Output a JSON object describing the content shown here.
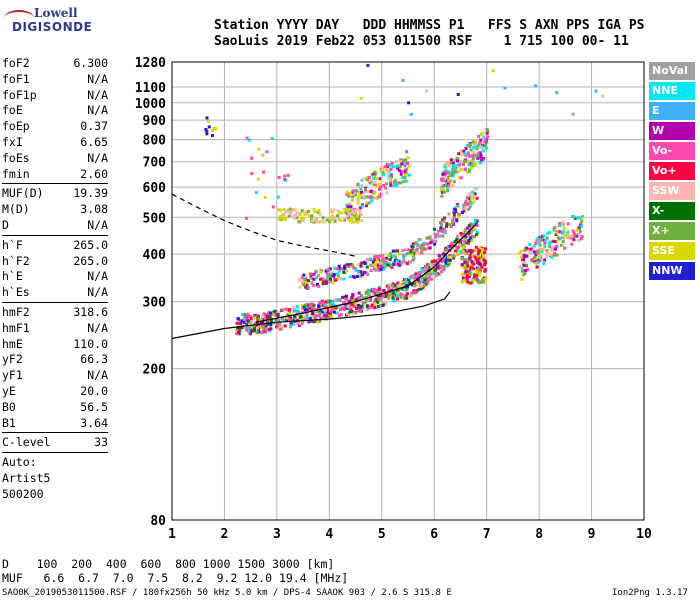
{
  "logo": {
    "line1": "Lowell",
    "line2": "DIGISONDE"
  },
  "header": {
    "line1": "Station YYYY DAY   DDD HHMMSS P1   FFS S AXN PPS IGA PS",
    "line2": "SaoLuis 2019 Feb22 053 011500 RSF    1 715 100 00- 11"
  },
  "params": {
    "group1": [
      {
        "name": "foF2",
        "value": "6.300"
      },
      {
        "name": "foF1",
        "value": "N/A"
      },
      {
        "name": "foF1p",
        "value": "N/A"
      },
      {
        "name": "foE",
        "value": "N/A"
      },
      {
        "name": "foEp",
        "value": "0.37"
      },
      {
        "name": "fxI",
        "value": "6.65"
      },
      {
        "name": "foEs",
        "value": "N/A"
      },
      {
        "name": "fmin",
        "value": "2.60"
      }
    ],
    "group2": [
      {
        "name": "MUF(D)",
        "value": "19.39"
      },
      {
        "name": "M(D)",
        "value": "3.08"
      },
      {
        "name": "D",
        "value": "N/A"
      }
    ],
    "group3": [
      {
        "name": "h`F",
        "value": "265.0"
      },
      {
        "name": "h`F2",
        "value": "265.0"
      },
      {
        "name": "h`E",
        "value": "N/A"
      },
      {
        "name": "h`Es",
        "value": "N/A"
      }
    ],
    "group4": [
      {
        "name": "hmF2",
        "value": "318.6"
      },
      {
        "name": "hmF1",
        "value": "N/A"
      },
      {
        "name": "hmE",
        "value": "110.0"
      },
      {
        "name": "yF2",
        "value": "66.3"
      },
      {
        "name": "yF1",
        "value": "N/A"
      },
      {
        "name": "yE",
        "value": "20.0"
      },
      {
        "name": "B0",
        "value": "56.5"
      },
      {
        "name": "B1",
        "value": "3.64"
      }
    ],
    "clevel": {
      "name": "C-level",
      "value": "33"
    },
    "auto": [
      "Auto:",
      "Artist5",
      "500200"
    ]
  },
  "legend": [
    {
      "label": "NoVal",
      "color": "#a0a0a0"
    },
    {
      "label": "NNE",
      "color": "#00e8f0"
    },
    {
      "label": "E",
      "color": "#40b0f8"
    },
    {
      "label": "W",
      "color": "#b000b0"
    },
    {
      "label": "Vo-",
      "color": "#ff48b0"
    },
    {
      "label": "Vo+",
      "color": "#ff0040"
    },
    {
      "label": "SSW",
      "color": "#ffb4b4"
    },
    {
      "label": "X-",
      "color": "#007000"
    },
    {
      "label": "X+",
      "color": "#70b040"
    },
    {
      "label": "SSE",
      "color": "#d8d800"
    },
    {
      "label": "NNW",
      "color": "#2020d0"
    }
  ],
  "bottom": {
    "d_line": "D    100  200  400  600  800 1000 1500 3000 [km]",
    "muf_line": "MUF   6.6  6.7  7.0  7.5  8.2  9.2 12.0 19.4 [MHz]",
    "footer": "SAO0K_2019053011500.RSF / 180fx256h 50 kHz 5.0 km / DPS-4 SAAOK 903 / 2.6 S 315.8 E",
    "version": "Ion2Png 1.3.17"
  },
  "chart_data": {
    "type": "scatter",
    "title": "",
    "xlabel": "",
    "ylabel": "",
    "x_ticks": [
      1,
      2,
      3,
      4,
      5,
      6,
      7,
      8,
      9,
      10
    ],
    "y_ticks": [
      80,
      200,
      300,
      400,
      500,
      600,
      700,
      800,
      900,
      1000,
      1100,
      1280
    ],
    "xlim": [
      1,
      10
    ],
    "y_scale": "log",
    "ylim": [
      80,
      1280
    ],
    "grid": true,
    "ordinary_trace": {
      "x": [
        2.6,
        3.5,
        4.5,
        5.5,
        6.0,
        6.3,
        6.6,
        6.8
      ],
      "y": [
        265,
        280,
        300,
        330,
        370,
        410,
        450,
        480
      ]
    },
    "profile_curve": {
      "x": [
        1.0,
        2.0,
        3.0,
        4.0,
        5.0,
        5.8,
        6.2,
        6.3
      ],
      "y": [
        240,
        255,
        265,
        270,
        278,
        292,
        305,
        318.6
      ]
    },
    "valley_curve": {
      "x": [
        1.0,
        1.5,
        2.0,
        2.5,
        3.0,
        3.5,
        4.0,
        4.5
      ],
      "y": [
        575,
        530,
        490,
        460,
        435,
        420,
        408,
        395
      ]
    },
    "oblique_clusters": [
      {
        "x": [
          4.3,
          5.5
        ],
        "y": [
          560,
          680
        ]
      },
      {
        "x": [
          6.1,
          7.0
        ],
        "y": [
          640,
          780
        ]
      },
      {
        "x": [
          7.6,
          8.8
        ],
        "y": [
          390,
          470
        ]
      }
    ]
  }
}
